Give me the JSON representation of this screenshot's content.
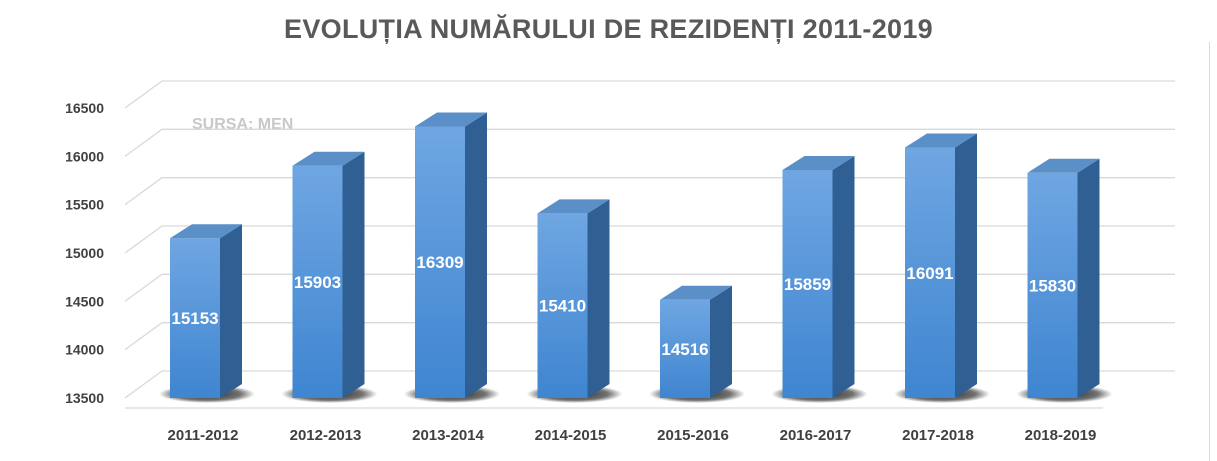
{
  "title": "EVOLUȚIA NUMĂRULUI DE REZIDENȚI 2011-2019",
  "source_note": "SURSA: MEN",
  "colors": {
    "bar_front_top": "#6fa6e2",
    "bar_front_bottom": "#3f85d0",
    "bar_side": "#2f5f93",
    "bar_top": "#5b8fc8",
    "gridline": "#d9d9d9",
    "text": "#404040",
    "title": "#595959"
  },
  "chart_data": {
    "type": "bar",
    "three_d": true,
    "title": "EVOLUȚIA NUMĂRULUI DE REZIDENȚI 2011-2019",
    "xlabel": "",
    "ylabel": "",
    "categories": [
      "2011-2012",
      "2012-2013",
      "2013-2014",
      "2014-2015",
      "2015-2016",
      "2016-2017",
      "2017-2018",
      "2018-2019"
    ],
    "values": [
      15153,
      15903,
      16309,
      15410,
      14516,
      15859,
      16091,
      15830
    ],
    "data_labels": [
      "15153",
      "15903",
      "16309",
      "15410",
      "14516",
      "15859",
      "16091",
      "15830"
    ],
    "ylim": [
      13500,
      16500
    ],
    "yticks": [
      "13500",
      "14000",
      "14500",
      "15000",
      "15500",
      "16000",
      "16500"
    ],
    "ytick_values": [
      13500,
      14000,
      14500,
      15000,
      15500,
      16000,
      16500
    ],
    "grid": true,
    "legend": "none"
  }
}
